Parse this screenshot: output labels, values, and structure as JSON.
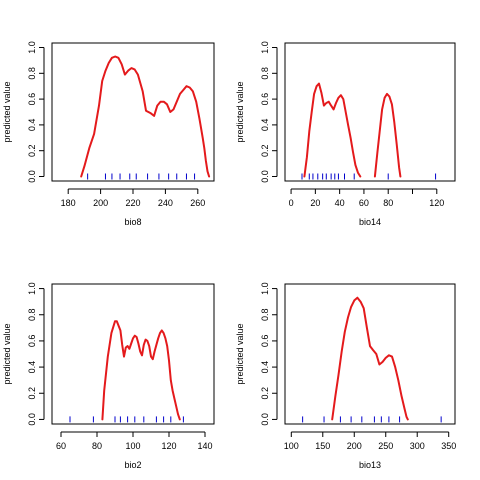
{
  "chart_data": [
    {
      "type": "line",
      "xlabel": "bio8",
      "ylabel": "predicted value",
      "xlim": [
        170,
        270
      ],
      "ylim": [
        0,
        1
      ],
      "xticks": [
        180,
        200,
        220,
        240,
        260
      ],
      "yticks": [
        0.0,
        0.2,
        0.4,
        0.6,
        0.8,
        1.0
      ],
      "ytick_labels": [
        "0.0",
        "0.2",
        "0.4",
        "0.6",
        "0.8",
        "1.0"
      ],
      "line_color": "#e41a1c",
      "rug_color": "#0000cc",
      "series": [
        {
          "x": [
            188,
            190,
            193,
            196,
            199,
            201,
            203,
            205,
            207,
            209,
            211,
            213,
            215,
            217,
            219,
            221,
            223,
            226,
            228,
            231,
            233,
            235,
            237,
            239,
            241,
            243,
            245,
            247,
            249,
            251,
            253,
            255,
            257,
            259,
            261,
            263,
            264,
            265,
            266,
            267
          ],
          "y": [
            0.0,
            0.08,
            0.22,
            0.33,
            0.55,
            0.74,
            0.82,
            0.88,
            0.92,
            0.93,
            0.92,
            0.87,
            0.79,
            0.82,
            0.84,
            0.83,
            0.79,
            0.66,
            0.51,
            0.49,
            0.47,
            0.55,
            0.58,
            0.58,
            0.56,
            0.5,
            0.52,
            0.58,
            0.64,
            0.67,
            0.7,
            0.69,
            0.66,
            0.58,
            0.45,
            0.3,
            0.22,
            0.12,
            0.04,
            0.0
          ]
        }
      ],
      "rug": [
        192,
        203,
        207,
        212,
        218,
        222,
        229,
        236,
        242,
        247,
        253,
        258
      ]
    },
    {
      "type": "line",
      "xlabel": "bio14",
      "ylabel": "predicted value",
      "xlim": [
        -5,
        135
      ],
      "ylim": [
        0,
        1
      ],
      "xticks": [
        0,
        20,
        40,
        60,
        80,
        100,
        120
      ],
      "xtick_labels": [
        "0",
        "20",
        "40",
        "60",
        "80",
        "",
        "120"
      ],
      "yticks": [
        0.0,
        0.2,
        0.4,
        0.6,
        0.8,
        1.0
      ],
      "ytick_labels": [
        "0.0",
        "0.2",
        "0.4",
        "0.6",
        "0.8",
        "1.0"
      ],
      "line_color": "#e41a1c",
      "rug_color": "#0000cc",
      "series": [
        {
          "x": [
            11,
            13,
            15,
            17,
            19,
            21,
            23,
            25,
            27,
            29,
            31,
            33,
            35,
            37,
            39,
            41,
            43,
            45,
            47,
            49,
            51,
            53,
            55,
            57
          ],
          "y": [
            0.0,
            0.15,
            0.35,
            0.5,
            0.64,
            0.7,
            0.72,
            0.65,
            0.55,
            0.57,
            0.58,
            0.55,
            0.52,
            0.57,
            0.61,
            0.63,
            0.6,
            0.5,
            0.4,
            0.3,
            0.19,
            0.09,
            0.03,
            0.0
          ]
        },
        {
          "x": [
            69,
            71,
            73,
            75,
            77,
            79,
            81,
            83,
            85,
            87,
            89,
            90
          ],
          "y": [
            0.0,
            0.18,
            0.35,
            0.52,
            0.61,
            0.64,
            0.62,
            0.56,
            0.42,
            0.25,
            0.07,
            0.0
          ]
        }
      ],
      "rug": [
        9,
        15,
        18,
        22,
        26,
        29,
        33,
        36,
        39,
        44,
        52,
        80,
        119
      ]
    },
    {
      "type": "line",
      "xlabel": "bio2",
      "ylabel": "predicted value",
      "xlim": [
        55,
        145
      ],
      "ylim": [
        0,
        1
      ],
      "xticks": [
        60,
        80,
        100,
        120,
        140
      ],
      "yticks": [
        0.0,
        0.2,
        0.4,
        0.6,
        0.8,
        1.0
      ],
      "ytick_labels": [
        "0.0",
        "0.2",
        "0.4",
        "0.6",
        "0.8",
        "1.0"
      ],
      "line_color": "#e41a1c",
      "rug_color": "#0000cc",
      "series": [
        {
          "x": [
            83,
            84,
            86,
            88,
            90,
            91,
            93,
            94,
            95,
            96,
            97,
            98,
            99,
            100,
            101,
            102,
            103,
            104,
            105,
            106,
            107,
            108,
            109,
            110,
            111,
            112,
            113,
            114,
            115,
            116,
            117,
            118,
            119,
            120,
            121,
            122,
            123,
            124,
            125,
            126
          ],
          "y": [
            0.0,
            0.22,
            0.48,
            0.66,
            0.75,
            0.75,
            0.68,
            0.57,
            0.48,
            0.55,
            0.56,
            0.54,
            0.58,
            0.62,
            0.64,
            0.63,
            0.58,
            0.52,
            0.49,
            0.57,
            0.61,
            0.6,
            0.56,
            0.48,
            0.46,
            0.52,
            0.57,
            0.62,
            0.66,
            0.68,
            0.66,
            0.62,
            0.56,
            0.45,
            0.3,
            0.22,
            0.16,
            0.1,
            0.04,
            0.0
          ]
        }
      ],
      "rug": [
        65,
        78,
        90,
        93,
        97,
        101,
        106,
        113,
        117,
        121,
        128
      ]
    },
    {
      "type": "line",
      "xlabel": "bio13",
      "ylabel": "predicted value",
      "xlim": [
        90,
        360
      ],
      "ylim": [
        0,
        1
      ],
      "xticks": [
        100,
        150,
        200,
        250,
        300,
        350
      ],
      "yticks": [
        0.0,
        0.2,
        0.4,
        0.6,
        0.8,
        1.0
      ],
      "ytick_labels": [
        "0.0",
        "0.2",
        "0.4",
        "0.6",
        "0.8",
        "1.0"
      ],
      "line_color": "#e41a1c",
      "rug_color": "#0000cc",
      "series": [
        {
          "x": [
            165,
            170,
            175,
            180,
            185,
            190,
            195,
            200,
            205,
            210,
            215,
            220,
            225,
            230,
            235,
            240,
            245,
            250,
            255,
            260,
            265,
            270,
            275,
            280,
            283,
            285
          ],
          "y": [
            0.0,
            0.18,
            0.34,
            0.52,
            0.67,
            0.78,
            0.86,
            0.91,
            0.93,
            0.9,
            0.85,
            0.7,
            0.56,
            0.53,
            0.5,
            0.42,
            0.44,
            0.47,
            0.49,
            0.48,
            0.4,
            0.3,
            0.18,
            0.08,
            0.02,
            0.0
          ]
        }
      ],
      "rug": [
        118,
        152,
        178,
        195,
        212,
        232,
        243,
        255,
        272,
        338
      ]
    }
  ]
}
